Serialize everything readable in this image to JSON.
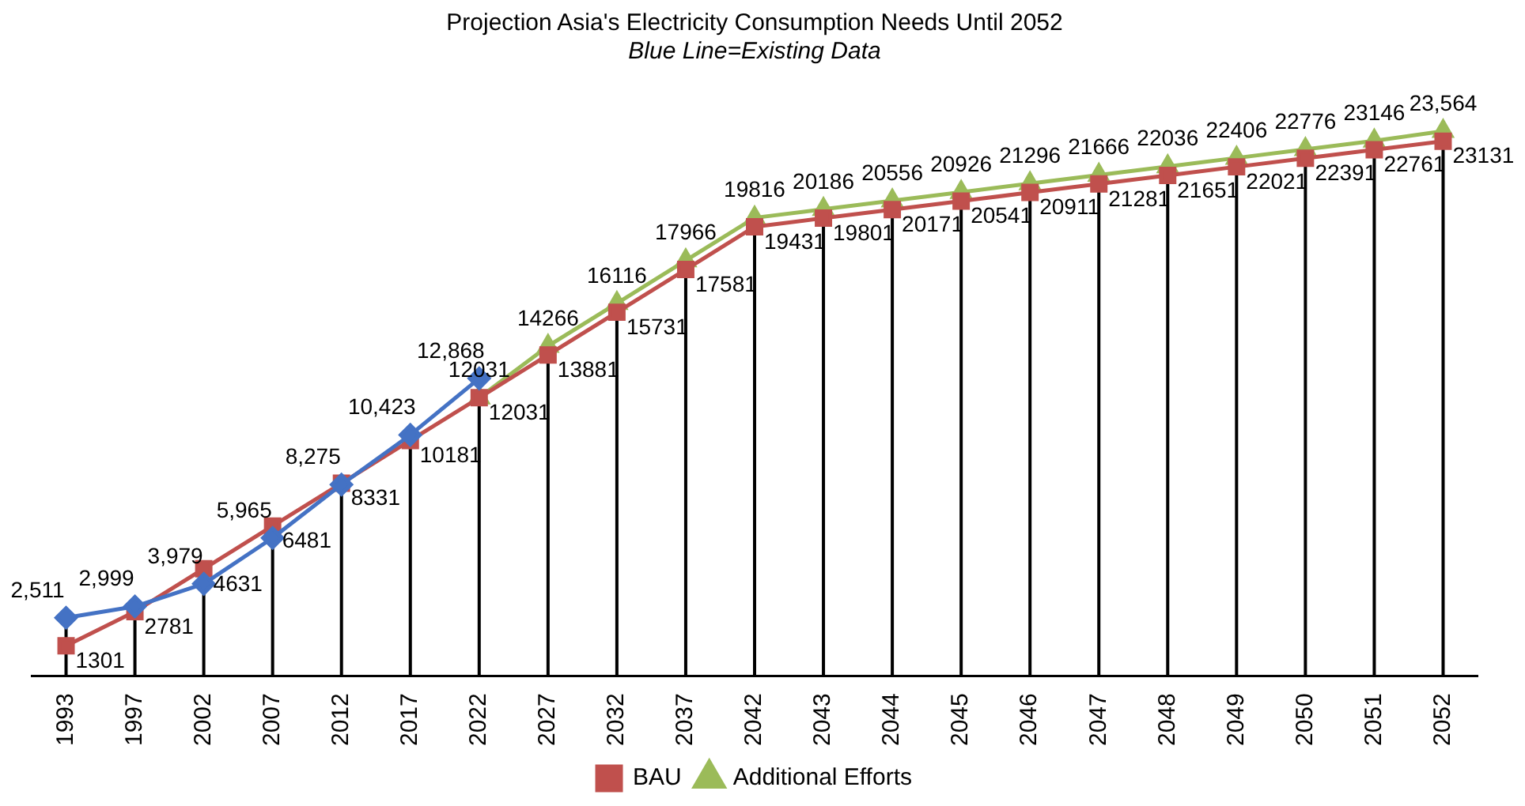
{
  "chart_data": {
    "type": "line",
    "title": "Projection Asia's Electricity Consumption Needs Until 2052",
    "subtitle": "Blue Line=Existing Data",
    "categories": [
      "1993",
      "1997",
      "2002",
      "2007",
      "2012",
      "2017",
      "2022",
      "2027",
      "2032",
      "2037",
      "2042",
      "2043",
      "2044",
      "2045",
      "2046",
      "2047",
      "2048",
      "2049",
      "2050",
      "2051",
      "2052"
    ],
    "series": [
      {
        "color": "#4472c4",
        "marker": "diamond",
        "values": [
          2511,
          2999,
          3979,
          5965,
          8275,
          10423,
          12868,
          null,
          null,
          null,
          null,
          null,
          null,
          null,
          null,
          null,
          null,
          null,
          null,
          null,
          null
        ],
        "value_labels": [
          "2,511",
          "2,999",
          "3,979",
          "5,965",
          "8,275",
          "10,423",
          "12,868",
          null,
          null,
          null,
          null,
          null,
          null,
          null,
          null,
          null,
          null,
          null,
          null,
          null,
          null
        ]
      },
      {
        "name": "BAU",
        "color": "#c0504d",
        "marker": "square",
        "values": [
          1301,
          2781,
          4631,
          6481,
          8331,
          10181,
          12031,
          13881,
          15731,
          17581,
          19431,
          19801,
          20171,
          20541,
          20911,
          21281,
          21651,
          22021,
          22391,
          22761,
          23131
        ],
        "value_labels": [
          "1301",
          "2781",
          "4631",
          "6481",
          "8331",
          "10181",
          "12031",
          "13881",
          "15731",
          "17581",
          "19431",
          "19801",
          "20171",
          "20541",
          "20911",
          "21281",
          "21651",
          "22021",
          "22391",
          "22761",
          "23131"
        ]
      },
      {
        "name": "Additional Efforts",
        "color": "#9bbb59",
        "marker": "triangle",
        "values": [
          null,
          null,
          null,
          null,
          null,
          null,
          12031,
          14266,
          16116,
          17966,
          19816,
          20186,
          20556,
          20926,
          21296,
          21666,
          22036,
          22406,
          22776,
          23146,
          23564
        ],
        "value_labels": [
          null,
          null,
          null,
          null,
          null,
          null,
          "12031",
          "14266",
          "16116",
          "17966",
          "19816",
          "20186",
          "20556",
          "20926",
          "21296",
          "21666",
          "22036",
          "22406",
          "22776",
          "23146",
          "23,564"
        ]
      }
    ],
    "legend": "bottom",
    "grid": "x",
    "tick_labels": "x"
  }
}
